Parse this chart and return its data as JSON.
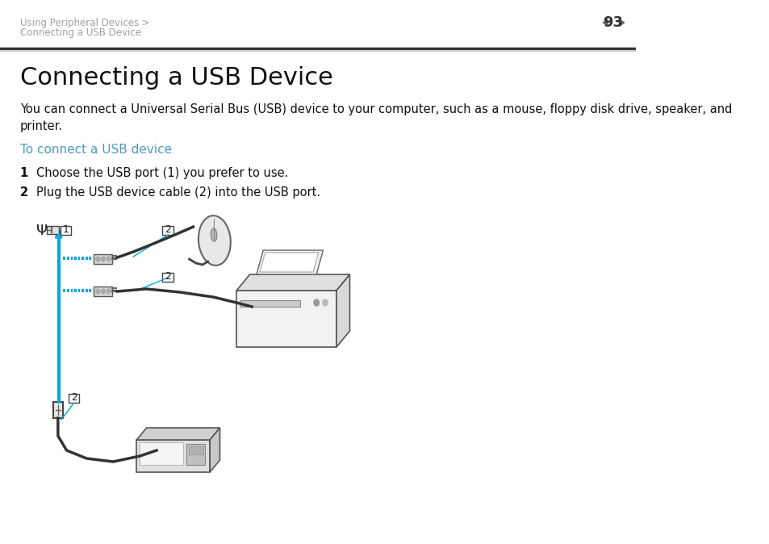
{
  "bg_color": "#ffffff",
  "header_text_line1": "Using Peripheral Devices >",
  "header_text_line2": "Connecting a USB Device",
  "page_number": "93",
  "title": "Connecting a USB Device",
  "body_text": "You can connect a Universal Serial Bus (USB) device to your computer, such as a mouse, floppy disk drive, speaker, and\nprinter.",
  "subtitle": "To connect a USB device",
  "step1": "Choose the USB port (1) you prefer to use.",
  "step2": "Plug the USB device cable (2) into the USB port.",
  "header_color": "#a0a0a0",
  "subtitle_color": "#4a9bbf",
  "title_fontsize": 22,
  "header_fontsize": 8.5,
  "body_fontsize": 10.5,
  "subtitle_fontsize": 11,
  "step_fontsize": 10.5,
  "page_num_fontsize": 13,
  "arrow_color": "#00aadd",
  "dashed_color": "#00aadd"
}
